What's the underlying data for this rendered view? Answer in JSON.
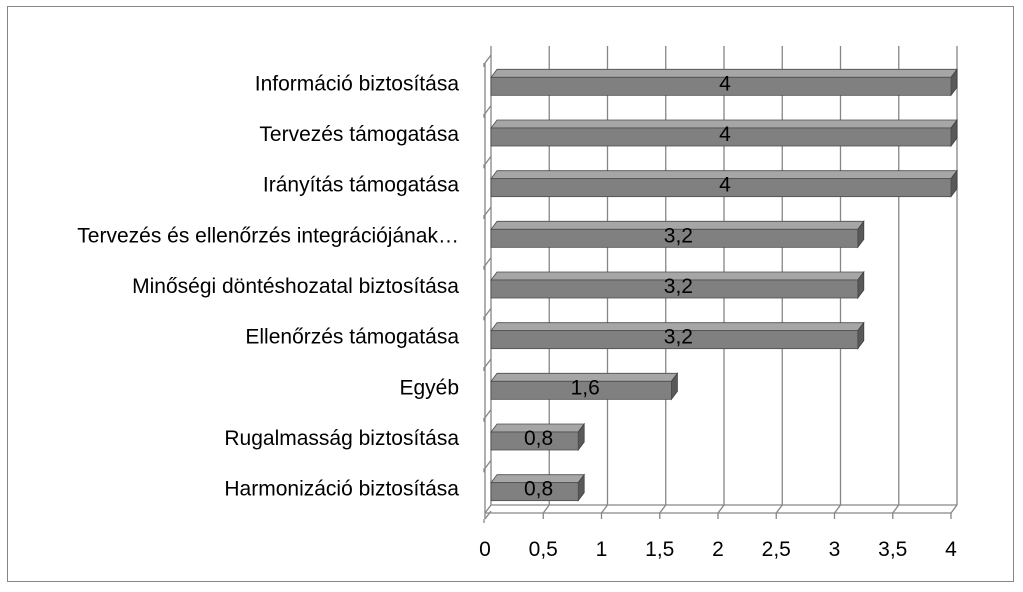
{
  "chart_data": {
    "type": "bar",
    "orientation": "horizontal",
    "three_d": true,
    "categories": [
      "Információ biztosítása",
      "Tervezés támogatása",
      "Irányítás támogatása",
      "Tervezés és ellenőrzés integrációjának…",
      "Minőségi döntéshozatal biztosítása",
      "Ellenőrzés támogatása",
      "Egyéb",
      "Rugalmasság biztosítása",
      "Harmonizáció biztosítása"
    ],
    "values": [
      4,
      4,
      4,
      3.2,
      3.2,
      3.2,
      1.6,
      0.8,
      0.8
    ],
    "data_labels": [
      "4",
      "4",
      "4",
      "3,2",
      "3,2",
      "3,2",
      "1,6",
      "0,8",
      "0,8"
    ],
    "x_ticks": [
      0,
      0.5,
      1,
      1.5,
      2,
      2.5,
      3,
      3.5,
      4
    ],
    "x_tick_labels": [
      "0",
      "0,5",
      "1",
      "1,5",
      "2",
      "2,5",
      "3",
      "3,5",
      "4"
    ],
    "xlim": [
      0,
      4
    ],
    "grid": true,
    "legend": "none",
    "title": "",
    "xlabel": "",
    "ylabel": "",
    "colors": {
      "bar_front": "#808080",
      "bar_top": "#a6a6a6",
      "bar_side": "#595959",
      "grid": "#868686",
      "frame": "#868686"
    }
  }
}
